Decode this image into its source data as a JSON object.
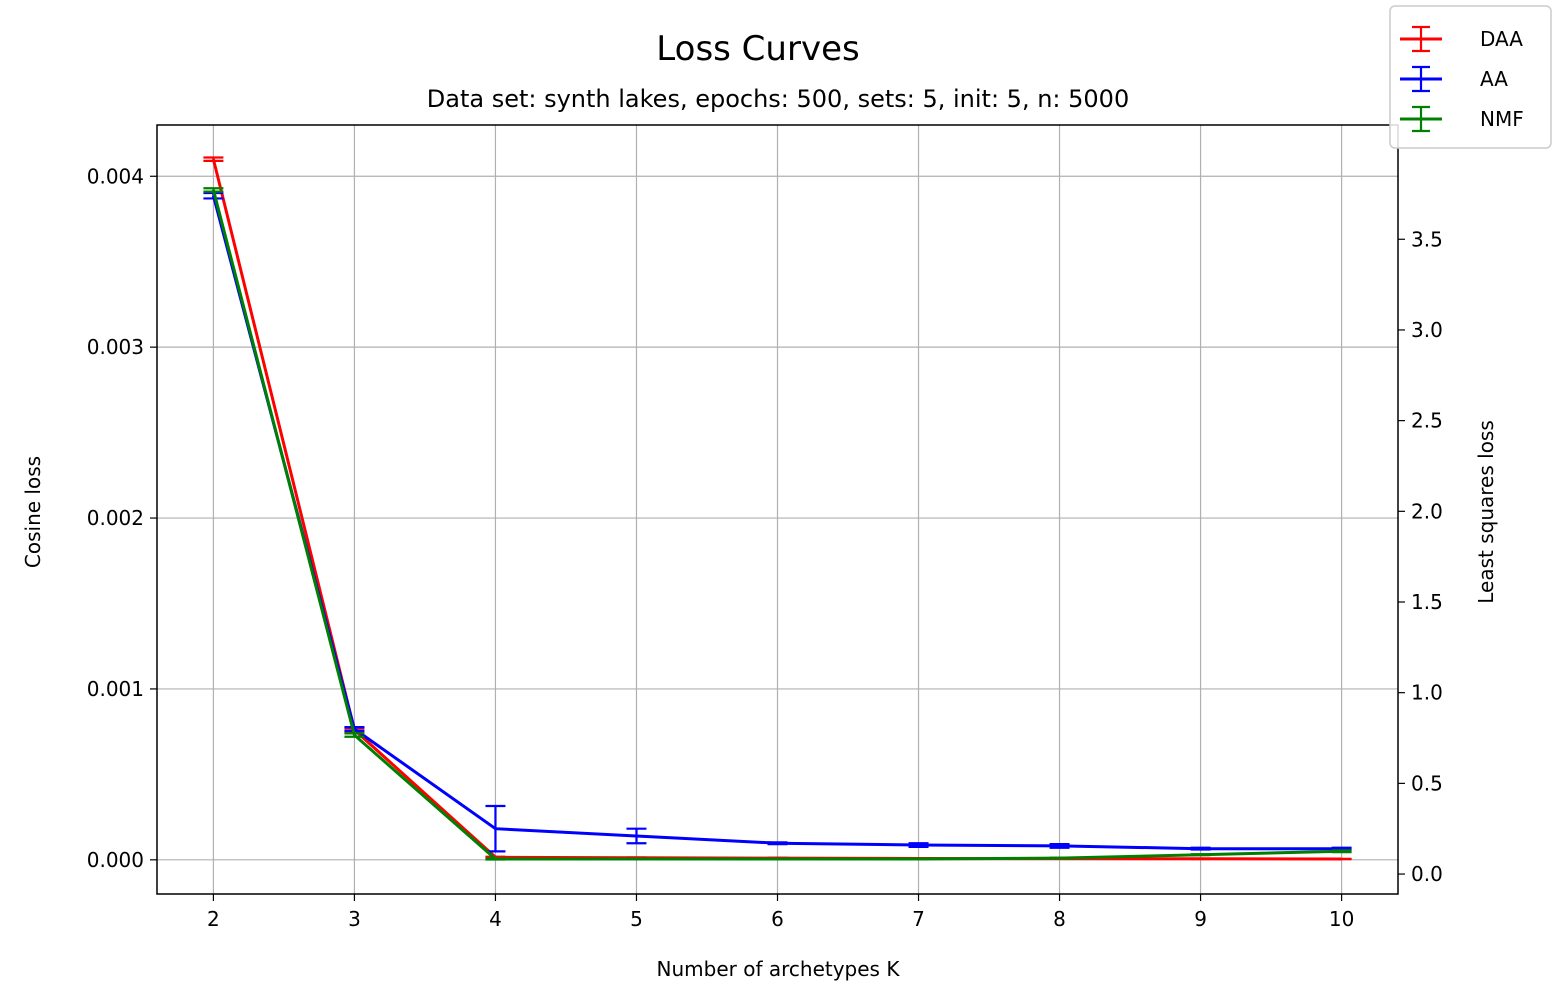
{
  "chart_data": {
    "type": "line",
    "title": "Loss Curves",
    "subtitle": "Data set:  synth lakes, epochs: 500, sets: 5, init: 5, n: 5000",
    "xlabel": "Number of archetypes K",
    "ylabel": "Cosine loss",
    "ylabel_right": "Least squares loss",
    "x": [
      2,
      3,
      4,
      5,
      6,
      7,
      8,
      9,
      10
    ],
    "xlim": [
      1.6,
      10.4
    ],
    "ylim": [
      -0.0002,
      0.0043
    ],
    "ylim_right": [
      -0.11,
      4.13
    ],
    "yticks": [
      "0.000",
      "0.001",
      "0.002",
      "0.003",
      "0.004"
    ],
    "yticks_right": [
      "0.0",
      "0.5",
      "1.0",
      "1.5",
      "2.0",
      "2.5",
      "3.0",
      "3.5"
    ],
    "grid": true,
    "legend_position": "top-right (outside)",
    "series": [
      {
        "name": "DAA",
        "color": "#ff0000",
        "axis": "left",
        "values": [
          0.0041,
          0.00076,
          1.5e-05,
          1.2e-05,
          1e-05,
          8e-06,
          7e-06,
          6e-06,
          5e-06
        ],
        "errors": [
          1e-05,
          1e-05,
          3e-06,
          2e-06,
          2e-06,
          1e-06,
          1e-06,
          1e-06,
          1e-06
        ]
      },
      {
        "name": "AA",
        "color": "#0000ff",
        "axis": "right",
        "values": [
          3.74,
          0.8,
          0.25,
          0.21,
          0.17,
          0.16,
          0.155,
          0.14,
          0.14
        ],
        "errors": [
          0.015,
          0.01,
          0.125,
          0.04,
          0.005,
          0.01,
          0.01,
          0.005,
          0.005
        ]
      },
      {
        "name": "NMF",
        "color": "#008000",
        "axis": "left",
        "values": [
          0.00392,
          0.00073,
          5e-06,
          5e-06,
          5e-06,
          5e-06,
          1e-05,
          3e-05,
          5e-05
        ],
        "errors": [
          1e-05,
          1e-05,
          3e-06,
          2e-06,
          1e-06,
          1e-06,
          2e-06,
          3e-06,
          5e-06
        ]
      }
    ]
  }
}
